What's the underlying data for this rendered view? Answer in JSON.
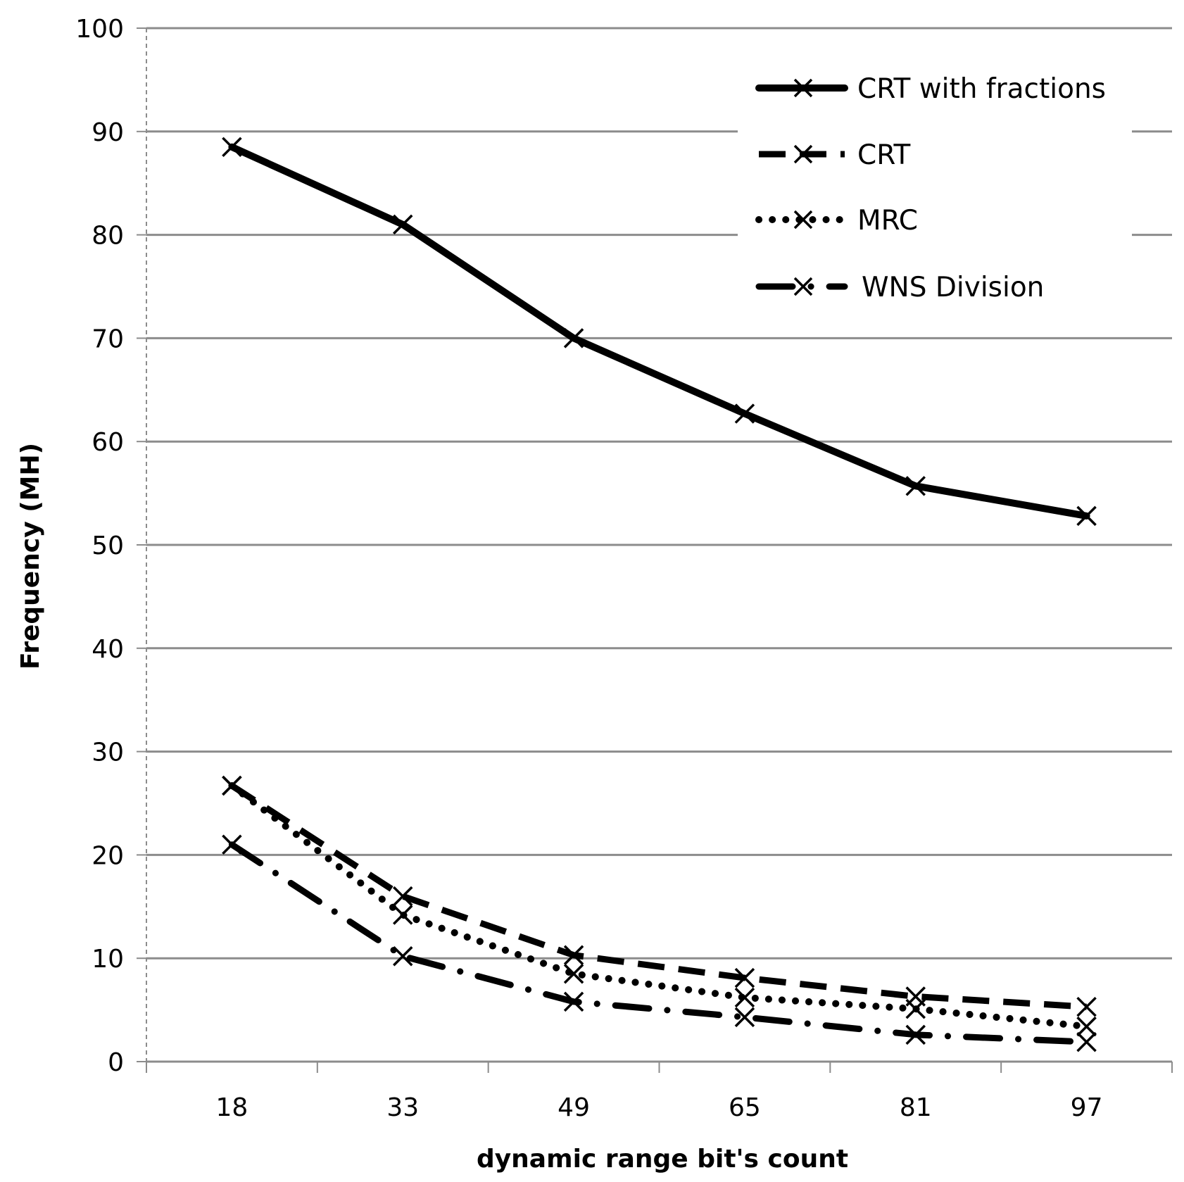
{
  "chart_data": {
    "type": "line",
    "title": "",
    "xlabel": "dynamic range bit's count",
    "ylabel": "Frequency (MH)",
    "categories": [
      "18",
      "33",
      "49",
      "65",
      "81",
      "97"
    ],
    "ylim": [
      0,
      100
    ],
    "yticks": [
      "0",
      "10",
      "20",
      "30",
      "40",
      "50",
      "60",
      "70",
      "80",
      "90",
      "100"
    ],
    "grid": true,
    "legend_position": "top-right",
    "series": [
      {
        "name": "CRT with fractions",
        "style": "solid",
        "marker": "x",
        "color": "#000000",
        "values": [
          88.5,
          81,
          70,
          62.7,
          55.7,
          52.8
        ]
      },
      {
        "name": "CRT",
        "style": "dashed",
        "marker": "x",
        "color": "#000000",
        "values": [
          26.7,
          16,
          10.3,
          8.1,
          6.3,
          5.3
        ]
      },
      {
        "name": "MRC",
        "style": "dotted",
        "marker": "x",
        "color": "#000000",
        "values": [
          26.7,
          14.2,
          8.5,
          6.2,
          5.1,
          3.4
        ]
      },
      {
        "name": "WNS Division",
        "style": "dash-dot",
        "marker": "x",
        "color": "#000000",
        "values": [
          21,
          10.2,
          5.8,
          4.3,
          2.6,
          1.9
        ]
      }
    ]
  }
}
